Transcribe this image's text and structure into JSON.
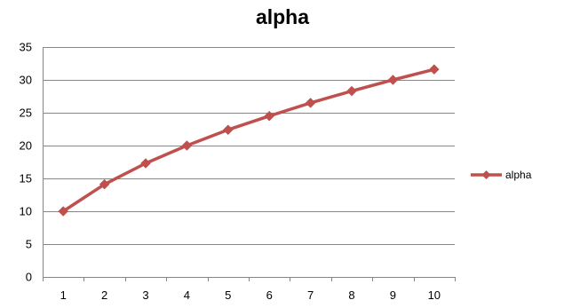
{
  "chart_data": {
    "type": "line",
    "title": "alpha",
    "xlabel": "",
    "ylabel": "",
    "categories": [
      "1",
      "2",
      "3",
      "4",
      "5",
      "6",
      "7",
      "8",
      "9",
      "10"
    ],
    "series": [
      {
        "name": "alpha",
        "values": [
          10,
          14.1,
          17.3,
          20,
          22.4,
          24.5,
          26.5,
          28.3,
          30,
          31.6
        ]
      }
    ],
    "ylim": [
      0,
      35
    ],
    "yticks": [
      "0",
      "5",
      "10",
      "15",
      "20",
      "25",
      "30",
      "35"
    ],
    "grid": "horizontal",
    "legend_position": "right",
    "colors": {
      "series": "#c0504d",
      "gridline": "#868686",
      "axis": "#868686"
    },
    "marker": "diamond"
  }
}
